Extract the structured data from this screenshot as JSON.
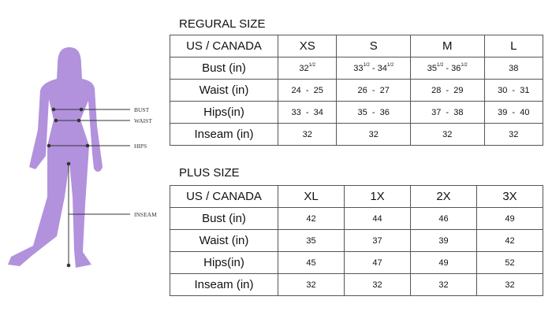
{
  "figure": {
    "labels": {
      "bust": "BUST",
      "waist": "WAIST",
      "hips": "HIPS",
      "inseam": "INSEAM"
    },
    "colors": {
      "silhouette": "#b291dd",
      "lines": "#333333"
    }
  },
  "regular": {
    "title": "REGURAL SIZE",
    "header": [
      "US / CANADA",
      "XS",
      "S",
      "M",
      "L"
    ],
    "rows": [
      {
        "label": "Bust (in)",
        "cells": [
          [
            {
              "t": "32",
              "sup": "1/2"
            }
          ],
          [
            {
              "t": "33",
              "sup": "1/2"
            },
            {
              "t": " - "
            },
            {
              "t": "34",
              "sup": "1/2"
            }
          ],
          [
            {
              "t": "35",
              "sup": "1/2"
            },
            {
              "t": " - "
            },
            {
              "t": "36",
              "sup": "1/2"
            }
          ],
          [
            {
              "t": "38"
            }
          ]
        ]
      },
      {
        "label": "Waist (in)",
        "cells": [
          [
            {
              "t": "24  -  25"
            }
          ],
          [
            {
              "t": "26  -  27"
            }
          ],
          [
            {
              "t": "28  -  29"
            }
          ],
          [
            {
              "t": "30  -  31"
            }
          ]
        ]
      },
      {
        "label": "Hips(in)",
        "cells": [
          [
            {
              "t": "33  -  34"
            }
          ],
          [
            {
              "t": "35  -  36"
            }
          ],
          [
            {
              "t": "37  -  38"
            }
          ],
          [
            {
              "t": "39  -  40"
            }
          ]
        ]
      },
      {
        "label": "Inseam (in)",
        "cells": [
          [
            {
              "t": "32"
            }
          ],
          [
            {
              "t": "32"
            }
          ],
          [
            {
              "t": "32"
            }
          ],
          [
            {
              "t": "32"
            }
          ]
        ]
      }
    ]
  },
  "plus": {
    "title": "PLUS SIZE",
    "header": [
      "US / CANADA",
      "XL",
      "1X",
      "2X",
      "3X"
    ],
    "rows": [
      {
        "label": "Bust (in)",
        "cells": [
          [
            {
              "t": "42"
            }
          ],
          [
            {
              "t": "44"
            }
          ],
          [
            {
              "t": "46"
            }
          ],
          [
            {
              "t": "49"
            }
          ]
        ]
      },
      {
        "label": "Waist (in)",
        "cells": [
          [
            {
              "t": "35"
            }
          ],
          [
            {
              "t": "37"
            }
          ],
          [
            {
              "t": "39"
            }
          ],
          [
            {
              "t": "42"
            }
          ]
        ]
      },
      {
        "label": "Hips(in)",
        "cells": [
          [
            {
              "t": "45"
            }
          ],
          [
            {
              "t": "47"
            }
          ],
          [
            {
              "t": "49"
            }
          ],
          [
            {
              "t": "52"
            }
          ]
        ]
      },
      {
        "label": "Inseam (in)",
        "cells": [
          [
            {
              "t": "32"
            }
          ],
          [
            {
              "t": "32"
            }
          ],
          [
            {
              "t": "32"
            }
          ],
          [
            {
              "t": "32"
            }
          ]
        ]
      }
    ]
  }
}
